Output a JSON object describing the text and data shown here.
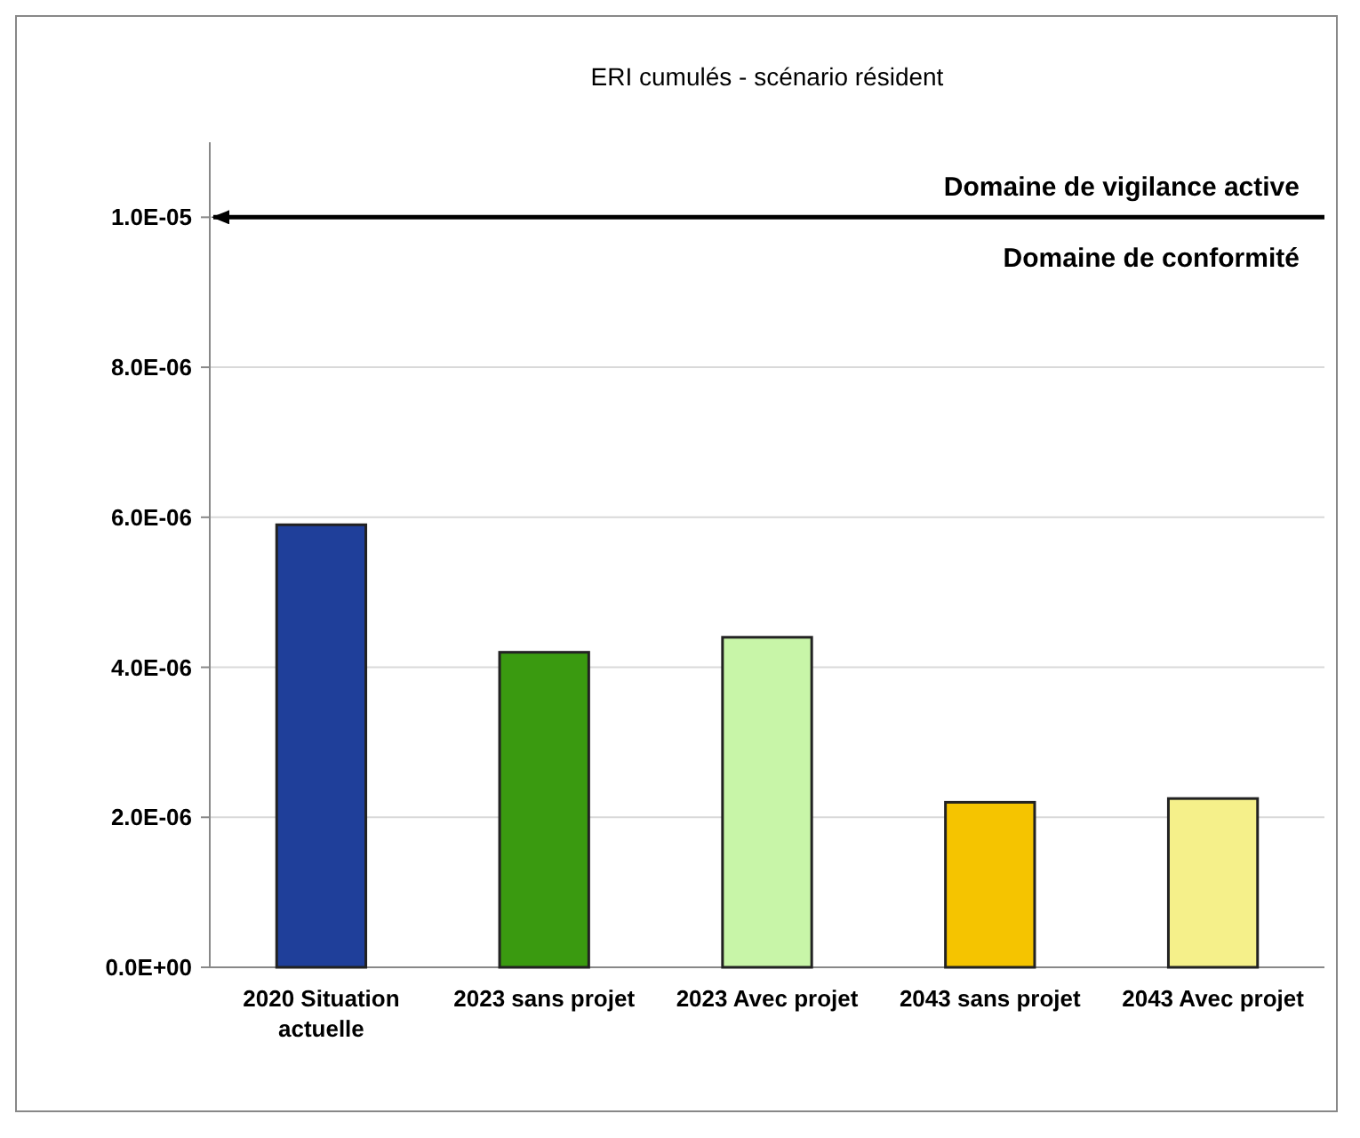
{
  "chart_data": {
    "type": "bar",
    "title": "ERI cumulés - scénario résident",
    "categories": [
      "2020 Situation actuelle",
      "2023 sans projet",
      "2023 Avec projet",
      "2043 sans projet",
      "2043 Avec projet"
    ],
    "values": [
      5.9e-06,
      4.2e-06,
      4.4e-06,
      2.2e-06,
      2.25e-06
    ],
    "colors": [
      "#1f3f9a",
      "#3a9a10",
      "#c8f5a8",
      "#f5c400",
      "#f5f08a"
    ],
    "ylim": [
      0,
      1.1e-05
    ],
    "yticks": [
      {
        "value": 0,
        "label": "0.0E+00"
      },
      {
        "value": 2e-06,
        "label": "2.0E-06"
      },
      {
        "value": 4e-06,
        "label": "4.0E-06"
      },
      {
        "value": 6e-06,
        "label": "6.0E-06"
      },
      {
        "value": 8e-06,
        "label": "8.0E-06"
      },
      {
        "value": 1e-05,
        "label": "1.0E-05"
      }
    ],
    "grid": "y",
    "ref_lines": [
      {
        "axis": "y",
        "value": 1e-05,
        "label": "Domaine de vigilance active",
        "color": "#000000"
      }
    ],
    "annotations": [
      "Domaine de conformité"
    ]
  }
}
